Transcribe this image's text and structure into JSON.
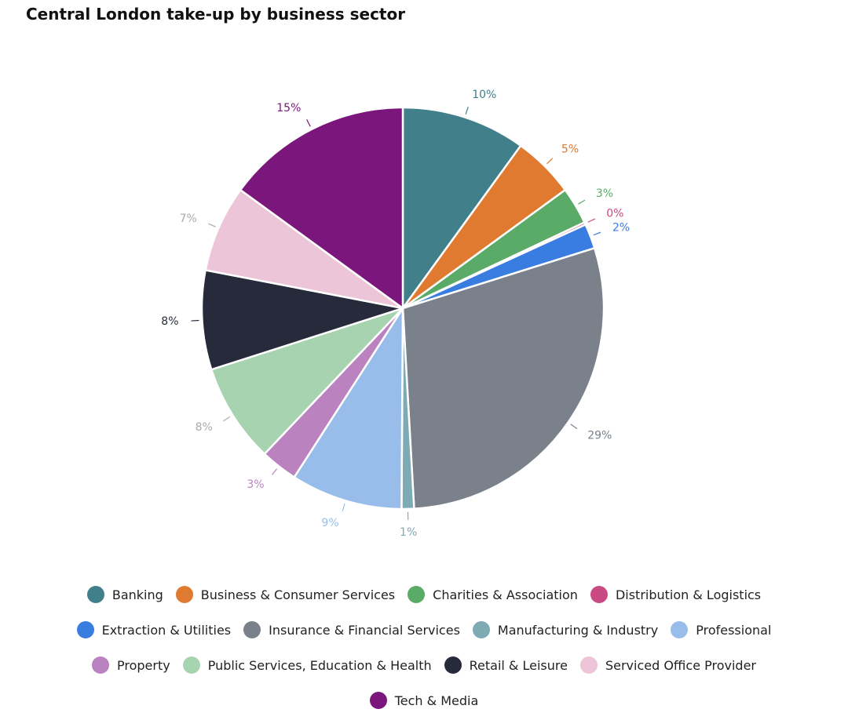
{
  "chart_data": {
    "type": "pie",
    "title": "Central London take-up by business sector",
    "legend_placement": "bottom",
    "series": [
      {
        "name": "Banking",
        "value": 10,
        "label": "10%",
        "color": "#417f8b"
      },
      {
        "name": "Business & Consumer Services",
        "value": 5,
        "label": "5%",
        "color": "#e07a30"
      },
      {
        "name": "Charities & Association",
        "value": 3,
        "label": "3%",
        "color": "#5aaa68"
      },
      {
        "name": "Distribution & Logistics",
        "value": 0.2,
        "label": "0%",
        "color": "#c94a82"
      },
      {
        "name": "Extraction & Utilities",
        "value": 2,
        "label": "2%",
        "color": "#3a7de0"
      },
      {
        "name": "Insurance & Financial Services",
        "value": 29,
        "label": "29%",
        "color": "#7a818b"
      },
      {
        "name": "Manufacturing & Industry",
        "value": 1,
        "label": "1%",
        "color": "#7eaab4"
      },
      {
        "name": "Professional",
        "value": 9,
        "label": "9%",
        "color": "#98bdea"
      },
      {
        "name": "Property",
        "value": 3,
        "label": "3%",
        "color": "#bb82c0"
      },
      {
        "name": "Public Services, Education & Health",
        "value": 8,
        "label": "8%",
        "color": "#a8d3b0"
      },
      {
        "name": "Retail & Leisure",
        "value": 8,
        "label": "8%",
        "color": "#262a3a"
      },
      {
        "name": "Serviced Office Provider",
        "value": 7,
        "label": "7%",
        "color": "#ecc6d8"
      },
      {
        "name": "Tech & Media",
        "value": 15,
        "label": "15%",
        "color": "#7b167c"
      }
    ]
  }
}
